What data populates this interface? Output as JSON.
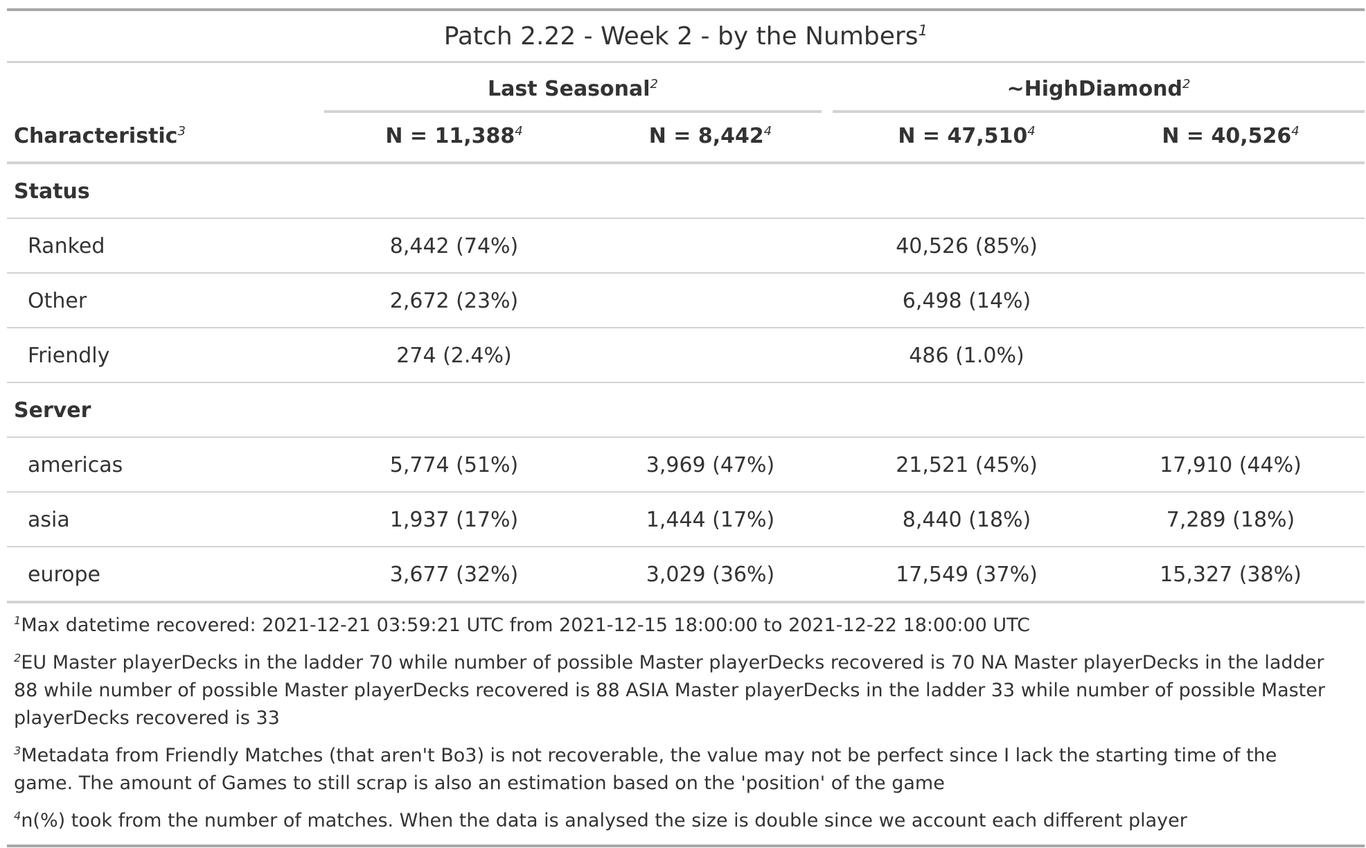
{
  "table": {
    "title": "Patch 2.22 - Week 2 - by the Numbers",
    "title_mark": "1",
    "spanners": [
      {
        "label": "Last Seasonal",
        "mark": "2"
      },
      {
        "label": "~HighDiamond",
        "mark": "2"
      }
    ],
    "characteristic_label": "Characteristic",
    "characteristic_mark": "3",
    "columns": [
      {
        "label": "N = 11,388",
        "mark": "4"
      },
      {
        "label": "N = 8,442",
        "mark": "4"
      },
      {
        "label": "N = 47,510",
        "mark": "4"
      },
      {
        "label": "N = 40,526",
        "mark": "4"
      }
    ],
    "groups": [
      {
        "label": "Status",
        "rows": [
          {
            "label": "Ranked",
            "cells": [
              "8,442 (74%)",
              "",
              "40,526 (85%)",
              ""
            ]
          },
          {
            "label": "Other",
            "cells": [
              "2,672 (23%)",
              "",
              "6,498 (14%)",
              ""
            ]
          },
          {
            "label": "Friendly",
            "cells": [
              "274 (2.4%)",
              "",
              "486 (1.0%)",
              ""
            ]
          }
        ]
      },
      {
        "label": "Server",
        "rows": [
          {
            "label": "americas",
            "cells": [
              "5,774 (51%)",
              "3,969 (47%)",
              "21,521 (45%)",
              "17,910 (44%)"
            ]
          },
          {
            "label": "asia",
            "cells": [
              "1,937 (17%)",
              "1,444 (17%)",
              "8,440 (18%)",
              "7,289 (18%)"
            ]
          },
          {
            "label": "europe",
            "cells": [
              "3,677 (32%)",
              "3,029 (36%)",
              "17,549 (37%)",
              "15,327 (38%)"
            ]
          }
        ]
      }
    ],
    "footnotes": [
      {
        "mark": "1",
        "text": "Max datetime recovered: 2021-12-21 03:59:21 UTC from 2021-12-15 18:00:00 to 2021-12-22 18:00:00 UTC"
      },
      {
        "mark": "2",
        "text": "EU Master playerDecks in the ladder 70 while number of possible Master playerDecks recovered is 70 NA Master playerDecks in the ladder 88 while number of possible Master playerDecks recovered is 88 ASIA Master playerDecks in the ladder 33 while number of possible Master playerDecks recovered is 33"
      },
      {
        "mark": "3",
        "text": "Metadata from Friendly Matches (that aren't Bo3) is not recoverable, the value may not be perfect since I lack the starting time of the game. The amount of Games to still scrap is also an estimation based on the 'position' of the game"
      },
      {
        "mark": "4",
        "text": "n(%) took from the number of matches. When the data is analysed the size is double since we account each different player"
      }
    ]
  }
}
